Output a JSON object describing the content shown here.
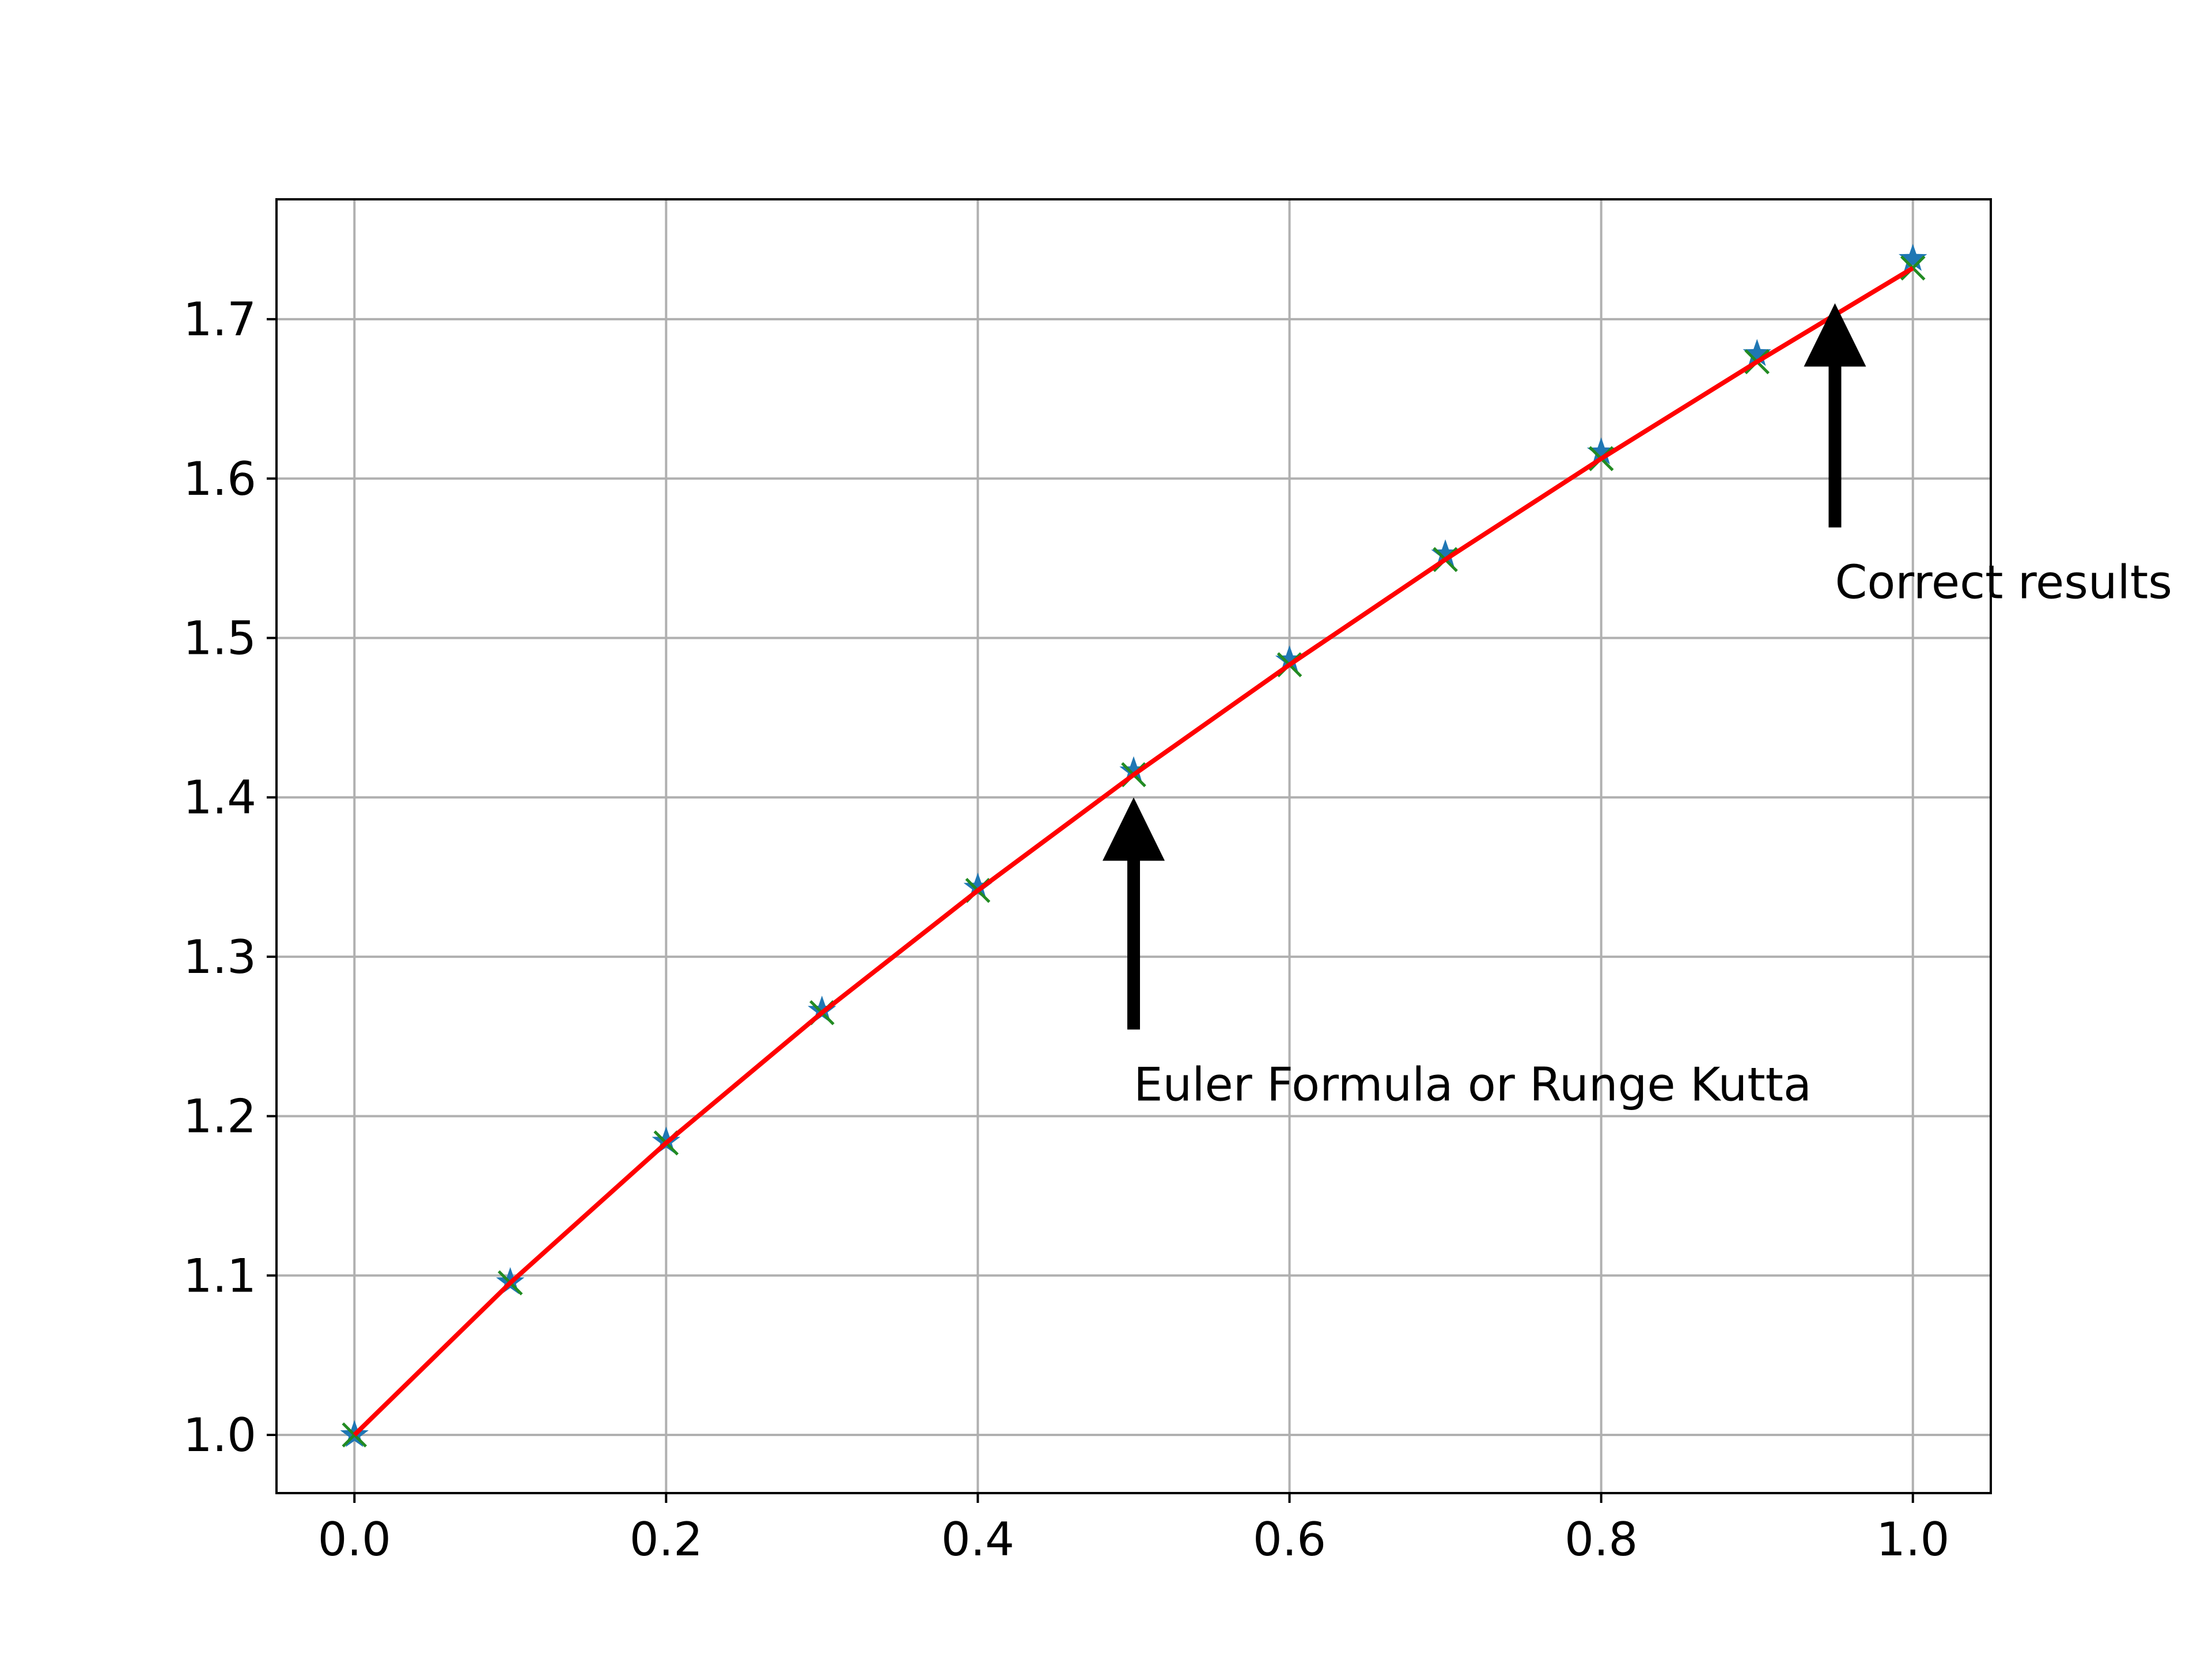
{
  "chart_data": {
    "type": "line",
    "title": "",
    "xlabel": "",
    "ylabel": "",
    "xlim": [
      -0.05,
      1.05
    ],
    "ylim": [
      0.9635,
      1.7752
    ],
    "grid": true,
    "x_ticks": [
      "0.0",
      "0.2",
      "0.4",
      "0.6",
      "0.8",
      "1.0"
    ],
    "y_ticks": [
      "1.0",
      "1.1",
      "1.2",
      "1.3",
      "1.4",
      "1.5",
      "1.6",
      "1.7"
    ],
    "x": [
      0.0,
      0.1,
      0.2,
      0.3,
      0.4,
      0.5,
      0.6,
      0.7,
      0.8,
      0.9,
      1.0
    ],
    "series": [
      {
        "marker": "star",
        "color": "#1f77b4",
        "values": [
          1.0,
          1.0959,
          1.1841,
          1.2662,
          1.3434,
          1.4164,
          1.486,
          1.5525,
          1.6165,
          1.6782,
          1.7379
        ]
      },
      {
        "marker": "x",
        "color": "#228b22",
        "values": [
          1.0,
          1.0954,
          1.1832,
          1.2649,
          1.3416,
          1.4142,
          1.4832,
          1.5492,
          1.6125,
          1.6733,
          1.7321
        ]
      },
      {
        "marker": "line",
        "color": "#ff0000",
        "values": [
          1.0,
          1.0954,
          1.1832,
          1.2649,
          1.3416,
          1.4142,
          1.4832,
          1.5492,
          1.6125,
          1.6733,
          1.7321
        ]
      }
    ],
    "annotations": [
      {
        "text": "Euler Formula or Runge Kutta",
        "xy": [
          0.5,
          1.4
        ],
        "xytext": [
          0.5,
          1.22
        ]
      },
      {
        "text": "Correct results",
        "xy": [
          0.95,
          1.71
        ],
        "xytext": [
          0.95,
          1.535
        ]
      }
    ]
  }
}
